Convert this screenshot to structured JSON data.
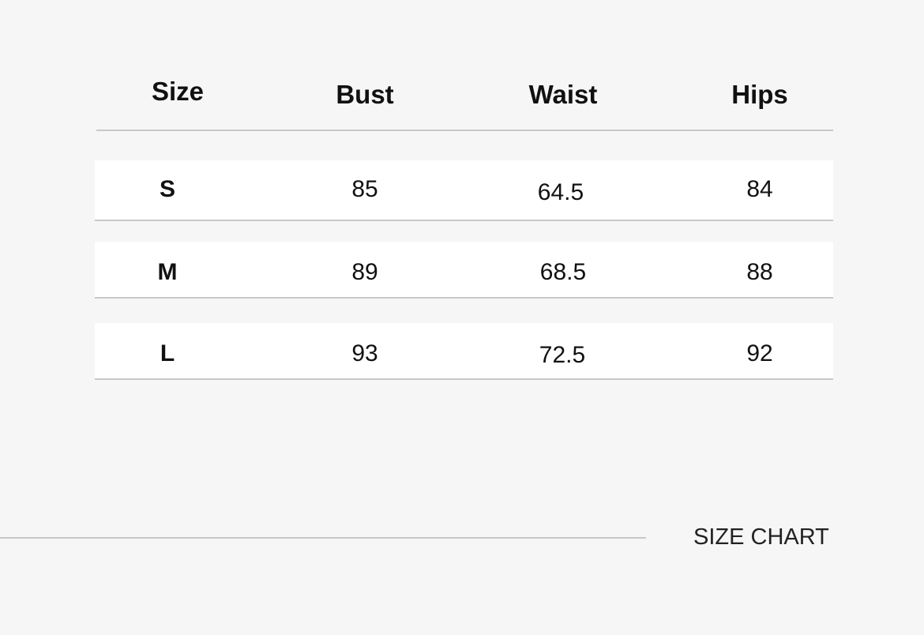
{
  "table": {
    "headers": [
      "Size",
      "Bust",
      "Waist",
      "Hips"
    ],
    "rows": [
      [
        "S",
        "85",
        "64.5",
        "84"
      ],
      [
        "M",
        "89",
        "68.5",
        "88"
      ],
      [
        "L",
        "93",
        "72.5",
        "92"
      ]
    ]
  },
  "footer": {
    "label": "SIZE CHART"
  }
}
